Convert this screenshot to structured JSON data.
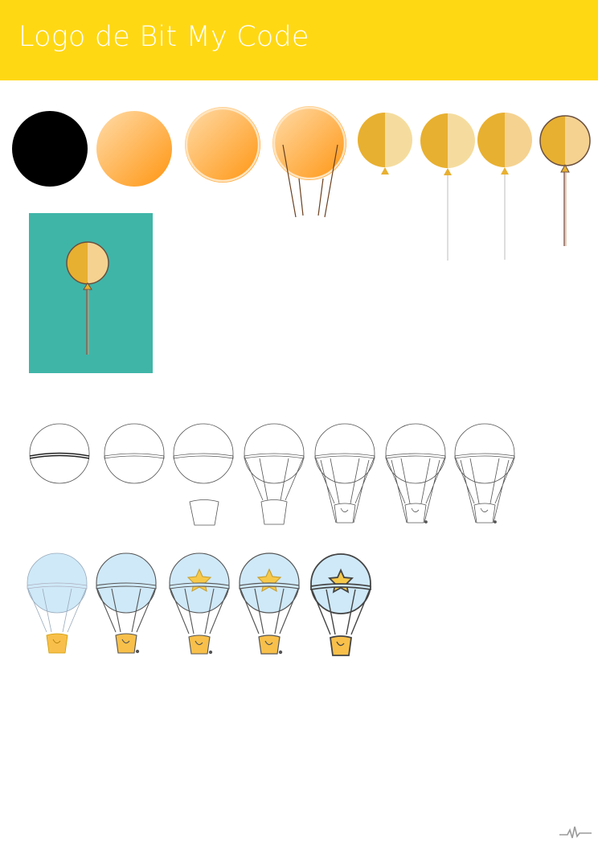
{
  "page": {
    "title": "Logo de Bit My Code"
  },
  "colors": {
    "header": "#ffd814",
    "balloon_dark": "#e8b030",
    "balloon_light": "#f5d98f",
    "orange_light": "#ffd59a",
    "orange_dark": "#ff9a1a",
    "teal": "#3fb5a8",
    "sky": "#cfe9f8",
    "basket": "#f8c04a",
    "star": "#f7c94a",
    "outline": "#555555"
  },
  "icons": [
    "balloon-icon",
    "hot-air-balloon-icon",
    "star-icon",
    "basket-icon",
    "signature-icon"
  ]
}
